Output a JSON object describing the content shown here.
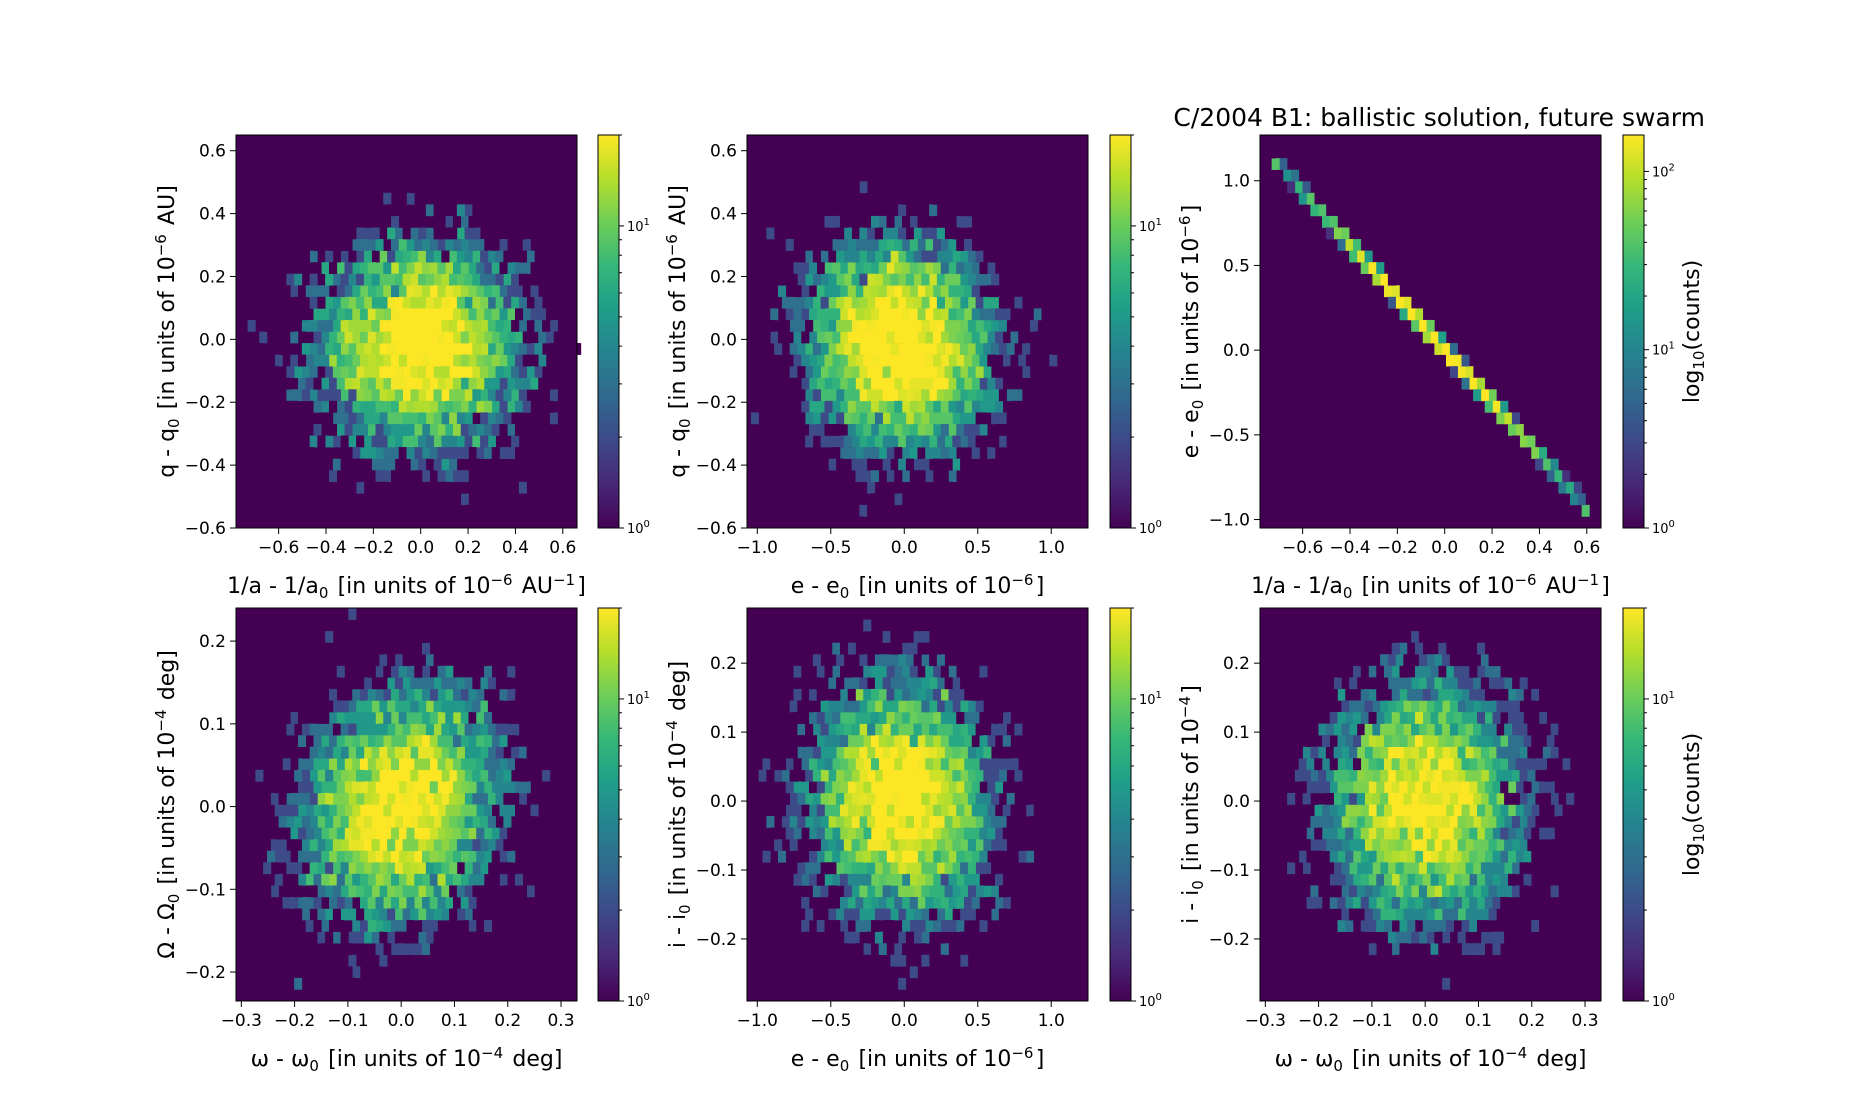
{
  "figure_title": "C/2004 B1:  ballistic solution, future swarm",
  "colorbar": {
    "label": "log10(counts)",
    "ticks": [
      "10^0",
      "10^1",
      "10^2"
    ]
  },
  "chart_data": [
    {
      "type": "heatmap",
      "id": "p1",
      "xlabel": "1/a - 1/a0 [in units of 10^-6 AU^-1]",
      "ylabel": "q - q0 [in units of 10^-6 AU]",
      "xlim": [
        -0.78,
        0.66
      ],
      "ylim": [
        -0.6,
        0.65
      ],
      "xticks": [
        "-0.6",
        "-0.4",
        "-0.2",
        "0.0",
        "0.2",
        "0.4",
        "0.6"
      ],
      "yticks": [
        "-0.6",
        "-0.4",
        "-0.2",
        "0.0",
        "0.2",
        "0.4",
        "0.6"
      ],
      "distribution": {
        "center": [
          0.0,
          -0.02
        ],
        "sigma": [
          0.22,
          0.17
        ],
        "correlation": 0.0,
        "n": 5000
      },
      "colorbar_max": 20,
      "colorbar_ticks": [
        "10^0",
        "10^1"
      ]
    },
    {
      "type": "heatmap",
      "id": "p2",
      "xlabel": "e - e0 [in units of 10^-6]",
      "ylabel": "q - q0 [in units of 10^-6 AU]",
      "xlim": [
        -1.07,
        1.25
      ],
      "ylim": [
        -0.6,
        0.65
      ],
      "xticks": [
        "-1.0",
        "-0.5",
        "0.0",
        "0.5",
        "1.0"
      ],
      "yticks": [
        "-0.6",
        "-0.4",
        "-0.2",
        "0.0",
        "0.2",
        "0.4",
        "0.6"
      ],
      "distribution": {
        "center": [
          -0.02,
          -0.02
        ],
        "sigma": [
          0.32,
          0.17
        ],
        "correlation": -0.05,
        "n": 5000
      },
      "colorbar_max": 20,
      "colorbar_ticks": [
        "10^0",
        "10^1"
      ]
    },
    {
      "type": "heatmap",
      "id": "p3",
      "xlabel": "1/a - 1/a0 [in units of 10^-6 AU^-1]",
      "ylabel": "e - e0 [in units of 10^-6]",
      "xlim": [
        -0.78,
        0.66
      ],
      "ylim": [
        -1.05,
        1.27
      ],
      "xticks": [
        "-0.6",
        "-0.4",
        "-0.2",
        "0.0",
        "0.2",
        "0.4",
        "0.6"
      ],
      "yticks": [
        "-1.0",
        "-0.5",
        "0.0",
        "0.5",
        "1.0"
      ],
      "distribution": {
        "center": [
          0.0,
          0.0
        ],
        "sigma": [
          0.22,
          0.33
        ],
        "correlation": -1.0,
        "line": {
          "x0": -0.72,
          "y0": 1.12,
          "x1": 0.6,
          "y1": -0.93
        },
        "n": 5000
      },
      "colorbar_max": 160,
      "colorbar_ticks": [
        "10^0",
        "10^1",
        "10^2"
      ],
      "colorbar_label": true
    },
    {
      "type": "heatmap",
      "id": "p4",
      "xlabel": "ω - ω0 [in units of 10^-4 deg]",
      "ylabel": "Ω - Ω0 [in units of 10^-4 deg]",
      "xlim": [
        -0.31,
        0.33
      ],
      "ylim": [
        -0.235,
        0.24
      ],
      "xticks": [
        "-0.3",
        "-0.2",
        "-0.1",
        "0.0",
        "0.1",
        "0.2",
        "0.3"
      ],
      "yticks": [
        "-0.2",
        "-0.1",
        "0.0",
        "0.1",
        "0.2"
      ],
      "distribution": {
        "center": [
          0.0,
          0.0
        ],
        "sigma": [
          0.095,
          0.075
        ],
        "correlation": 0.15,
        "n": 5000
      },
      "colorbar_max": 20,
      "colorbar_ticks": [
        "10^0",
        "10^1"
      ]
    },
    {
      "type": "heatmap",
      "id": "p5",
      "xlabel": "e - e0 [in units of 10^-6]",
      "ylabel": "i - i0 [in units of 10^-4 deg]",
      "xlim": [
        -1.07,
        1.25
      ],
      "ylim": [
        -0.29,
        0.28
      ],
      "xticks": [
        "-1.0",
        "-0.5",
        "0.0",
        "0.5",
        "1.0"
      ],
      "yticks": [
        "-0.2",
        "-0.1",
        "0.0",
        "0.1",
        "0.2"
      ],
      "distribution": {
        "center": [
          -0.02,
          0.0
        ],
        "sigma": [
          0.32,
          0.09
        ],
        "correlation": -0.05,
        "n": 5000
      },
      "colorbar_max": 20,
      "colorbar_ticks": [
        "10^0",
        "10^1"
      ]
    },
    {
      "type": "heatmap",
      "id": "p6",
      "xlabel": "ω - ω0 [in units of 10^-4 deg]",
      "ylabel": "i - i0 [in units of 10^-4]",
      "xlim": [
        -0.31,
        0.33
      ],
      "ylim": [
        -0.29,
        0.28
      ],
      "xticks": [
        "-0.3",
        "-0.2",
        "-0.1",
        "0.0",
        "0.1",
        "0.2",
        "0.3"
      ],
      "yticks": [
        "-0.2",
        "-0.1",
        "0.0",
        "0.1",
        "0.2"
      ],
      "distribution": {
        "center": [
          0.0,
          0.0
        ],
        "sigma": [
          0.095,
          0.09
        ],
        "correlation": 0.0,
        "n": 5000
      },
      "colorbar_max": 20,
      "colorbar_ticks": [
        "10^0",
        "10^1"
      ],
      "colorbar_label": true
    }
  ]
}
